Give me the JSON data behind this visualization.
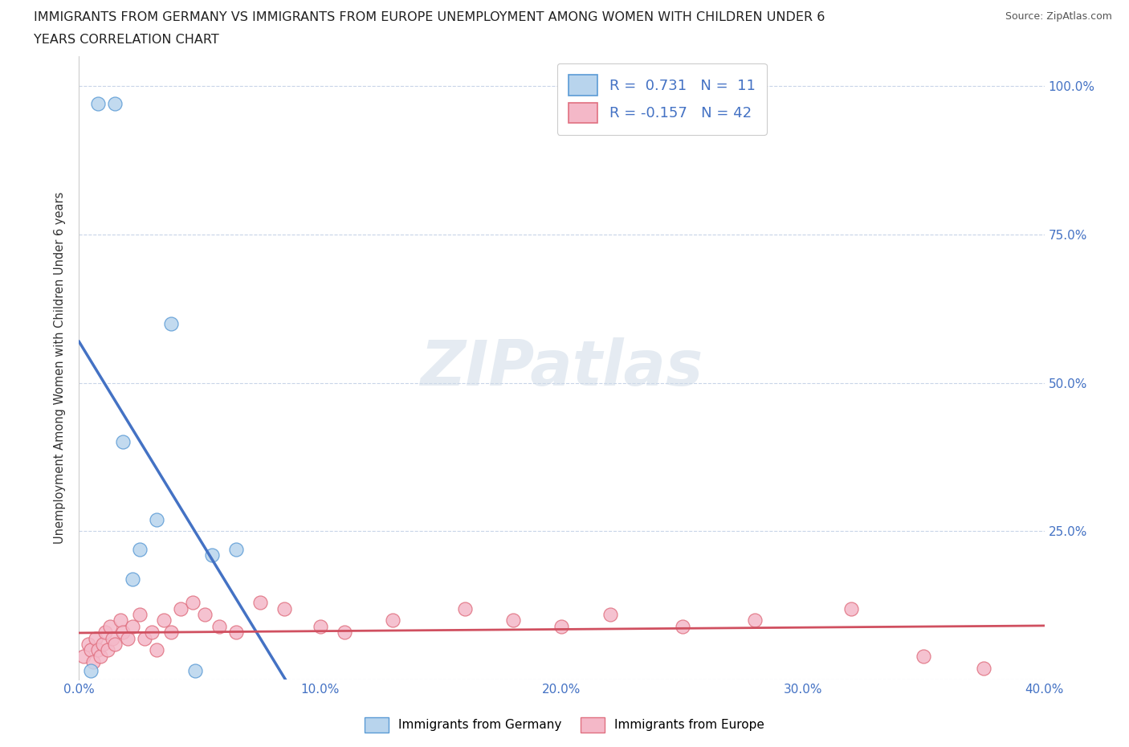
{
  "title_line1": "IMMIGRANTS FROM GERMANY VS IMMIGRANTS FROM EUROPE UNEMPLOYMENT AMONG WOMEN WITH CHILDREN UNDER 6",
  "title_line2": "YEARS CORRELATION CHART",
  "source": "Source: ZipAtlas.com",
  "ylabel": "Unemployment Among Women with Children Under 6 years",
  "xlim": [
    0.0,
    0.4
  ],
  "ylim": [
    0.0,
    1.05
  ],
  "x_ticks": [
    0.0,
    0.1,
    0.2,
    0.3,
    0.4
  ],
  "y_ticks": [
    0.0,
    0.25,
    0.5,
    0.75,
    1.0
  ],
  "r_germany": 0.731,
  "n_germany": 11,
  "r_europe": -0.157,
  "n_europe": 42,
  "color_germany_face": "#b8d4ed",
  "color_germany_edge": "#5b9bd5",
  "color_europe_face": "#f4b8c8",
  "color_europe_edge": "#e07080",
  "line_color_germany": "#4472c4",
  "line_color_europe": "#d05060",
  "background_color": "#ffffff",
  "grid_color": "#c8d4e8",
  "watermark_text": "ZIPatlas",
  "germany_x": [
    0.005,
    0.008,
    0.015,
    0.018,
    0.022,
    0.025,
    0.032,
    0.038,
    0.048,
    0.055,
    0.065
  ],
  "germany_y": [
    0.015,
    0.97,
    0.97,
    0.4,
    0.17,
    0.22,
    0.27,
    0.6,
    0.015,
    0.21,
    0.22
  ],
  "europe_x": [
    0.002,
    0.004,
    0.005,
    0.006,
    0.007,
    0.008,
    0.009,
    0.01,
    0.011,
    0.012,
    0.013,
    0.014,
    0.015,
    0.017,
    0.018,
    0.02,
    0.022,
    0.025,
    0.027,
    0.03,
    0.032,
    0.035,
    0.038,
    0.042,
    0.047,
    0.052,
    0.058,
    0.065,
    0.075,
    0.085,
    0.1,
    0.11,
    0.13,
    0.16,
    0.18,
    0.2,
    0.22,
    0.25,
    0.28,
    0.32,
    0.35,
    0.375
  ],
  "europe_y": [
    0.04,
    0.06,
    0.05,
    0.03,
    0.07,
    0.05,
    0.04,
    0.06,
    0.08,
    0.05,
    0.09,
    0.07,
    0.06,
    0.1,
    0.08,
    0.07,
    0.09,
    0.11,
    0.07,
    0.08,
    0.05,
    0.1,
    0.08,
    0.12,
    0.13,
    0.11,
    0.09,
    0.08,
    0.13,
    0.12,
    0.09,
    0.08,
    0.1,
    0.12,
    0.1,
    0.09,
    0.11,
    0.09,
    0.1,
    0.12,
    0.04,
    0.02
  ]
}
